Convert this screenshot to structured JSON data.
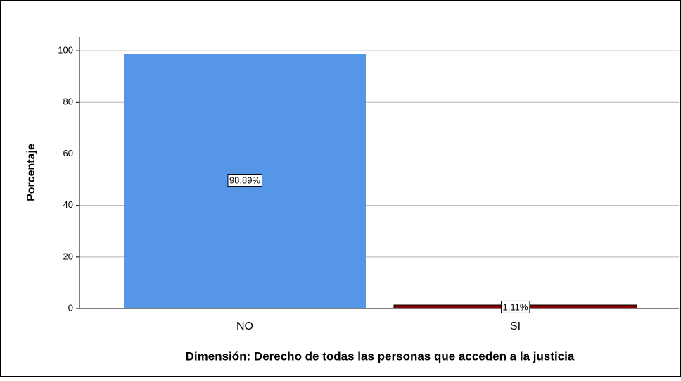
{
  "chart_data": {
    "type": "bar",
    "categories": [
      "NO",
      "SI"
    ],
    "values": [
      98.89,
      1.11
    ],
    "value_labels": [
      "98,89%",
      "1,11%"
    ],
    "colors": [
      "#5596e6",
      "#8b0000"
    ],
    "ylabel": "Porcentaje",
    "xlabel": "Dimensión: Derecho de todas las personas que acceden a la justicia",
    "ylim": [
      0,
      105.5
    ],
    "yticks": [
      0,
      20,
      40,
      60,
      80,
      100
    ],
    "grid": true
  }
}
